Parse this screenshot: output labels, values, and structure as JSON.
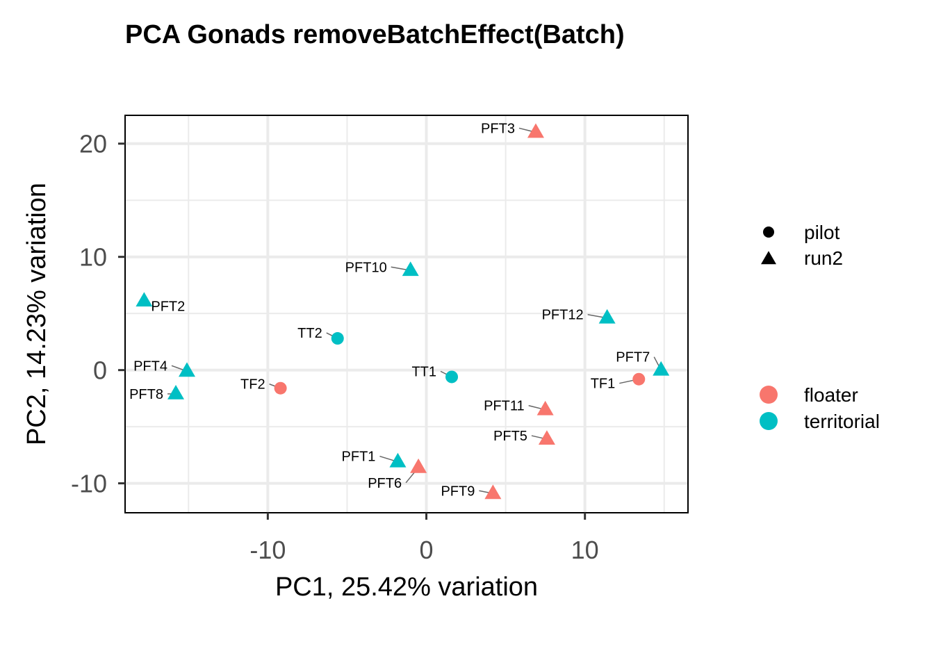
{
  "chart_data": {
    "type": "scatter",
    "title": "PCA Gonads removeBatchEffect(Batch)",
    "xlabel": "PC1, 25.42% variation",
    "ylabel": "PC2, 14.23% variation",
    "xlim": [
      -19,
      16.5
    ],
    "ylim": [
      -12.6,
      22.5
    ],
    "x_ticks": [
      -10,
      0,
      10
    ],
    "x_tick_labels": [
      "-10",
      "0",
      "10"
    ],
    "y_ticks": [
      -10,
      0,
      10,
      20
    ],
    "y_tick_labels": [
      "-10",
      "0",
      "10",
      "20"
    ],
    "grid": true,
    "legend_position": "right",
    "legends": {
      "shape": [
        {
          "label": "pilot",
          "shape": "circle"
        },
        {
          "label": "run2",
          "shape": "triangle"
        }
      ],
      "color": [
        {
          "label": "floater",
          "color": "#F8766D"
        },
        {
          "label": "territorial",
          "color": "#00BFC4"
        }
      ]
    },
    "points": [
      {
        "label": "PFT3",
        "x": 6.9,
        "y": 21.0,
        "group": "floater",
        "batch": "run2"
      },
      {
        "label": "PFT10",
        "x": -1.0,
        "y": 8.8,
        "group": "territorial",
        "batch": "run2"
      },
      {
        "label": "PFT2",
        "x": -17.8,
        "y": 6.1,
        "group": "territorial",
        "batch": "run2"
      },
      {
        "label": "PFT12",
        "x": 11.4,
        "y": 4.6,
        "group": "territorial",
        "batch": "run2"
      },
      {
        "label": "TT2",
        "x": -5.6,
        "y": 2.8,
        "group": "territorial",
        "batch": "pilot"
      },
      {
        "label": "PFT7",
        "x": 14.8,
        "y": 0.0,
        "group": "territorial",
        "batch": "run2"
      },
      {
        "label": "PFT4",
        "x": -15.1,
        "y": -0.1,
        "group": "territorial",
        "batch": "run2"
      },
      {
        "label": "TT1",
        "x": 1.6,
        "y": -0.6,
        "group": "territorial",
        "batch": "pilot"
      },
      {
        "label": "TF1",
        "x": 13.4,
        "y": -0.8,
        "group": "floater",
        "batch": "pilot"
      },
      {
        "label": "TF2",
        "x": -9.2,
        "y": -1.6,
        "group": "floater",
        "batch": "pilot"
      },
      {
        "label": "PFT8",
        "x": -15.8,
        "y": -2.1,
        "group": "territorial",
        "batch": "run2"
      },
      {
        "label": "PFT11",
        "x": 7.5,
        "y": -3.5,
        "group": "floater",
        "batch": "run2"
      },
      {
        "label": "PFT5",
        "x": 7.6,
        "y": -6.1,
        "group": "floater",
        "batch": "run2"
      },
      {
        "label": "PFT1",
        "x": -1.8,
        "y": -8.1,
        "group": "territorial",
        "batch": "run2"
      },
      {
        "label": "PFT6",
        "x": -0.5,
        "y": -8.6,
        "group": "floater",
        "batch": "run2"
      },
      {
        "label": "PFT9",
        "x": 4.2,
        "y": -10.9,
        "group": "floater",
        "batch": "run2"
      }
    ]
  }
}
